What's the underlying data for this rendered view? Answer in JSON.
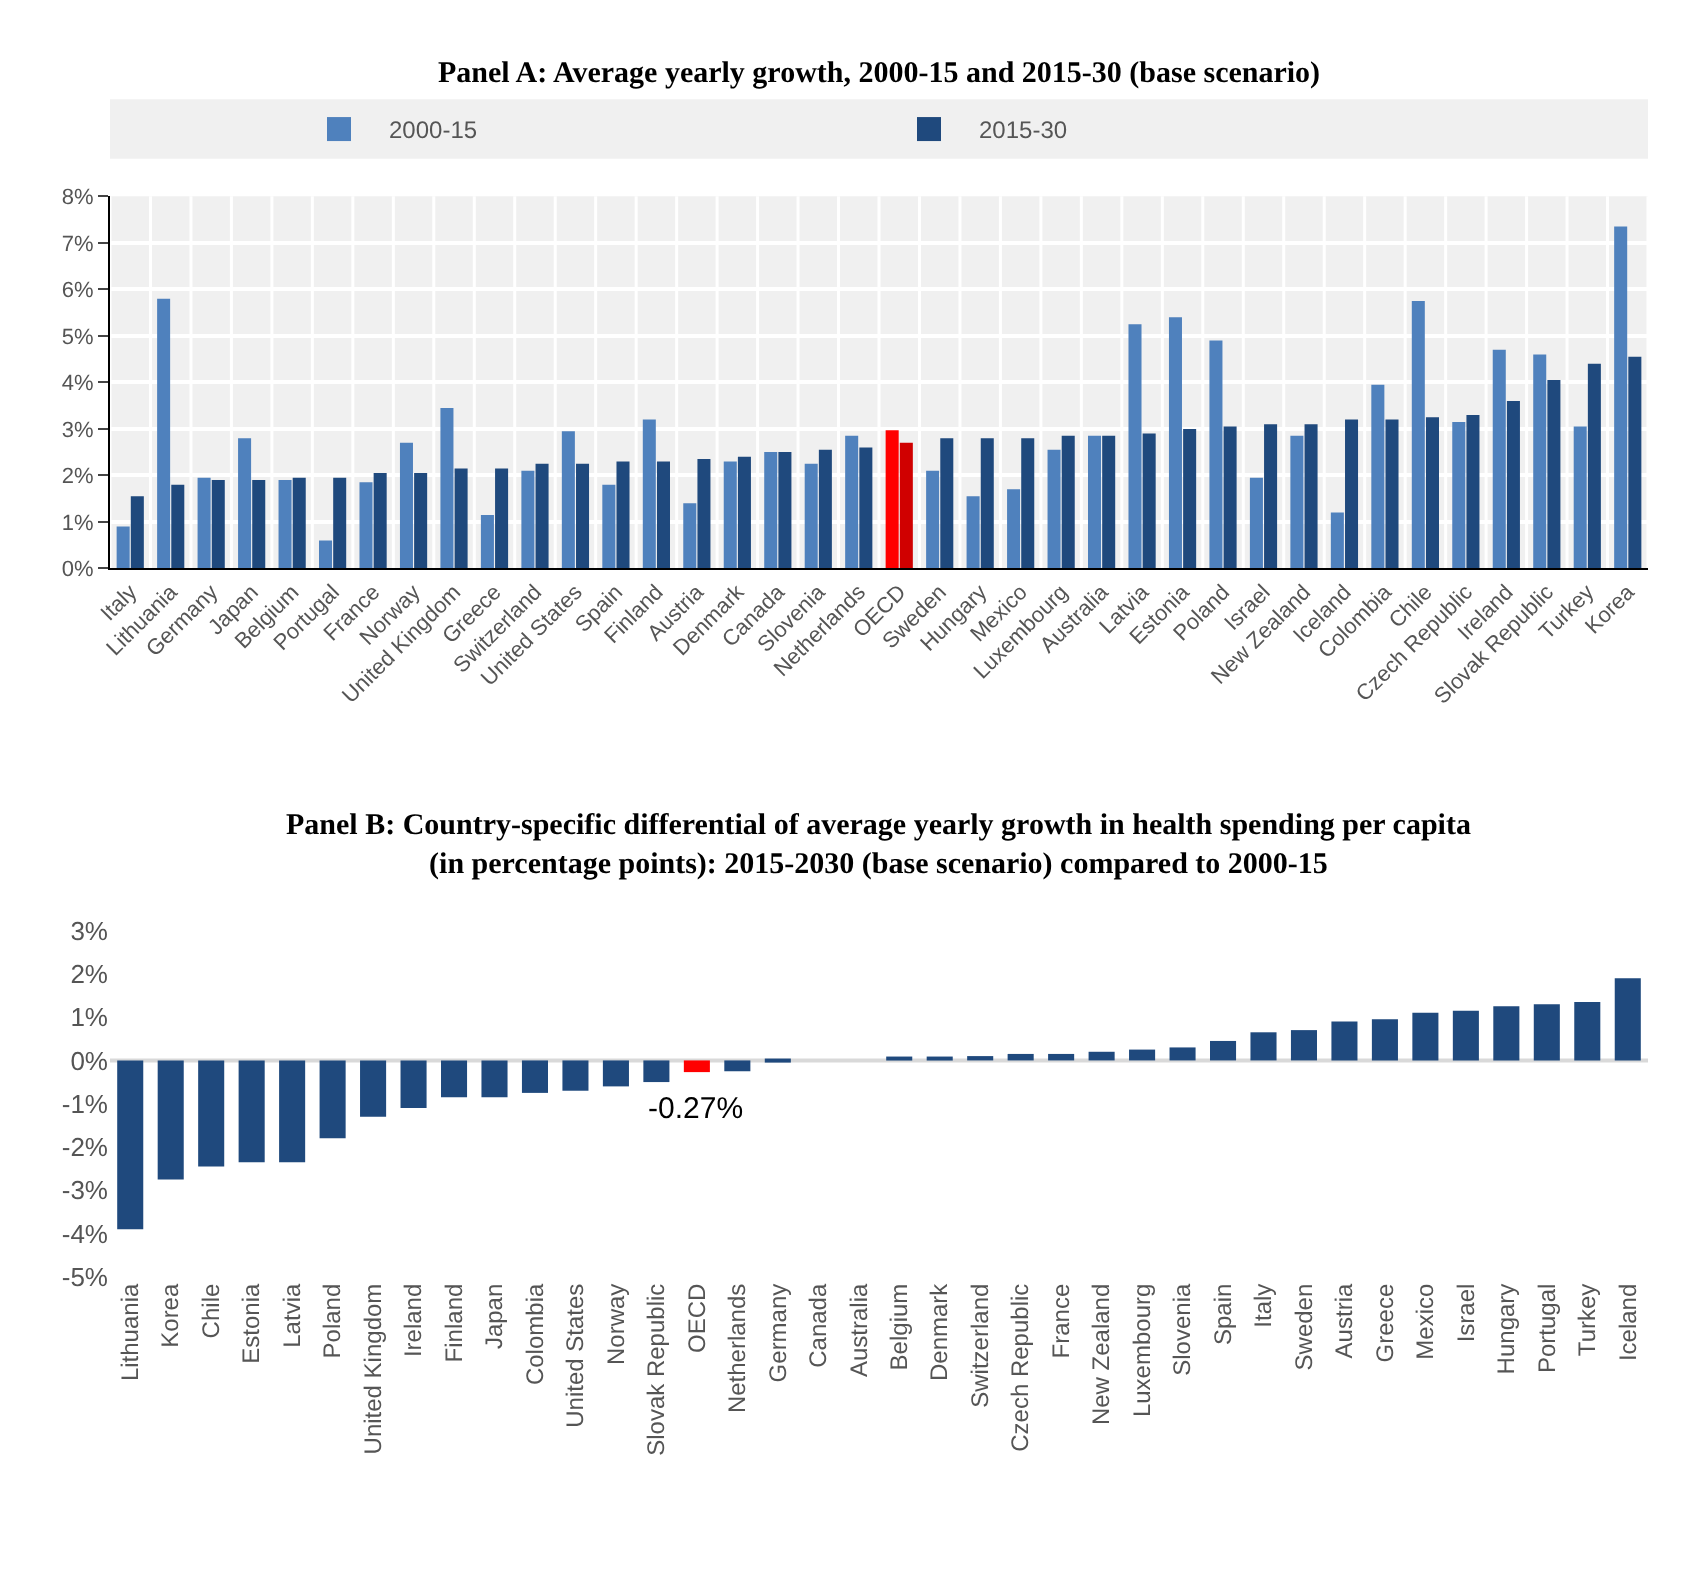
{
  "chart_data": [
    {
      "type": "bar",
      "title": "Panel A: Average yearly growth, 2000-15 and 2015-30 (base scenario)",
      "categories": [
        "Italy",
        "Lithuania",
        "Germany",
        "Japan",
        "Belgium",
        "Portugal",
        "France",
        "Norway",
        "United Kingdom",
        "Greece",
        "Switzerland",
        "United States",
        "Spain",
        "Finland",
        "Austria",
        "Denmark",
        "Canada",
        "Slovenia",
        "Netherlands",
        "OECD",
        "Sweden",
        "Hungary",
        "Mexico",
        "Luxembourg",
        "Australia",
        "Latvia",
        "Estonia",
        "Poland",
        "Israel",
        "New Zealand",
        "Iceland",
        "Colombia",
        "Chile",
        "Czech Republic",
        "Ireland",
        "Slovak Republic",
        "Turkey",
        "Korea"
      ],
      "series": [
        {
          "name": "2000-15",
          "colors": [
            "#4f81bd",
            "#4f81bd",
            "#4f81bd",
            "#4f81bd",
            "#4f81bd",
            "#4f81bd",
            "#4f81bd",
            "#4f81bd",
            "#4f81bd",
            "#4f81bd",
            "#4f81bd",
            "#4f81bd",
            "#4f81bd",
            "#4f81bd",
            "#4f81bd",
            "#4f81bd",
            "#4f81bd",
            "#4f81bd",
            "#4f81bd",
            "#ff0000",
            "#4f81bd",
            "#4f81bd",
            "#4f81bd",
            "#4f81bd",
            "#4f81bd",
            "#4f81bd",
            "#4f81bd",
            "#4f81bd",
            "#4f81bd",
            "#4f81bd",
            "#4f81bd",
            "#4f81bd",
            "#4f81bd",
            "#4f81bd",
            "#4f81bd",
            "#4f81bd",
            "#4f81bd",
            "#4f81bd"
          ],
          "values": [
            0.9,
            5.8,
            1.95,
            2.8,
            1.9,
            0.6,
            1.85,
            2.7,
            3.45,
            1.15,
            2.1,
            2.95,
            1.8,
            3.2,
            1.4,
            2.3,
            2.5,
            2.25,
            2.85,
            2.97,
            2.1,
            1.55,
            1.7,
            2.55,
            2.85,
            5.25,
            5.4,
            4.9,
            1.95,
            2.85,
            1.2,
            3.95,
            5.75,
            3.15,
            4.7,
            4.6,
            3.05,
            7.35
          ]
        },
        {
          "name": "2015-30",
          "colors": [
            "#1f497d",
            "#1f497d",
            "#1f497d",
            "#1f497d",
            "#1f497d",
            "#1f497d",
            "#1f497d",
            "#1f497d",
            "#1f497d",
            "#1f497d",
            "#1f497d",
            "#1f497d",
            "#1f497d",
            "#1f497d",
            "#1f497d",
            "#1f497d",
            "#1f497d",
            "#1f497d",
            "#1f497d",
            "#d00000",
            "#1f497d",
            "#1f497d",
            "#1f497d",
            "#1f497d",
            "#1f497d",
            "#1f497d",
            "#1f497d",
            "#1f497d",
            "#1f497d",
            "#1f497d",
            "#1f497d",
            "#1f497d",
            "#1f497d",
            "#1f497d",
            "#1f497d",
            "#1f497d",
            "#1f497d",
            "#1f497d"
          ],
          "values": [
            1.55,
            1.8,
            1.9,
            1.9,
            1.95,
            1.95,
            2.05,
            2.05,
            2.15,
            2.15,
            2.25,
            2.25,
            2.3,
            2.3,
            2.35,
            2.4,
            2.5,
            2.55,
            2.6,
            2.7,
            2.8,
            2.8,
            2.8,
            2.85,
            2.85,
            2.9,
            3.0,
            3.05,
            3.1,
            3.1,
            3.2,
            3.2,
            3.25,
            3.3,
            3.6,
            4.05,
            4.4,
            4.55
          ]
        }
      ],
      "ylim": [
        0,
        8
      ],
      "yticks": [
        {
          "value": 0,
          "label": "0%"
        },
        {
          "value": 1,
          "label": "1%"
        },
        {
          "value": 2,
          "label": "2%"
        },
        {
          "value": 3,
          "label": "3%"
        },
        {
          "value": 4,
          "label": "4%"
        },
        {
          "value": 5,
          "label": "5%"
        },
        {
          "value": 6,
          "label": "6%"
        },
        {
          "value": 7,
          "label": "7%"
        },
        {
          "value": 8,
          "label": "8%"
        }
      ],
      "grid": true,
      "legend": "top"
    },
    {
      "type": "bar",
      "title": "Panel B: Country-specific differential of average yearly growth in health spending per capita\n(in percentage points): 2015-2030 (base scenario) compared to 2000-15",
      "categories": [
        "Lithuania",
        "Korea",
        "Chile",
        "Estonia",
        "Latvia",
        "Poland",
        "United Kingdom",
        "Ireland",
        "Finland",
        "Japan",
        "Colombia",
        "United States",
        "Norway",
        "Slovak Republic",
        "OECD",
        "Netherlands",
        "Germany",
        "Canada",
        "Australia",
        "Belgium",
        "Denmark",
        "Switzerland",
        "Czech Republic",
        "France",
        "New Zealand",
        "Luxembourg",
        "Slovenia",
        "Spain",
        "Italy",
        "Sweden",
        "Austria",
        "Greece",
        "Mexico",
        "Israel",
        "Hungary",
        "Portugal",
        "Turkey",
        "Iceland"
      ],
      "series": [
        {
          "colors": [
            "#1f497d",
            "#1f497d",
            "#1f497d",
            "#1f497d",
            "#1f497d",
            "#1f497d",
            "#1f497d",
            "#1f497d",
            "#1f497d",
            "#1f497d",
            "#1f497d",
            "#1f497d",
            "#1f497d",
            "#1f497d",
            "#ff0000",
            "#1f497d",
            "#1f497d",
            "#1f497d",
            "#1f497d",
            "#1f497d",
            "#1f497d",
            "#1f497d",
            "#1f497d",
            "#1f497d",
            "#1f497d",
            "#1f497d",
            "#1f497d",
            "#1f497d",
            "#1f497d",
            "#1f497d",
            "#1f497d",
            "#1f497d",
            "#1f497d",
            "#1f497d",
            "#1f497d",
            "#1f497d",
            "#1f497d",
            "#1f497d"
          ],
          "values": [
            -3.9,
            -2.75,
            -2.45,
            -2.35,
            -2.35,
            -1.8,
            -1.3,
            -1.1,
            -0.85,
            -0.85,
            -0.75,
            -0.7,
            -0.6,
            -0.5,
            -0.27,
            -0.25,
            -0.05,
            0,
            0,
            0.05,
            0.05,
            0.1,
            0.15,
            0.15,
            0.2,
            0.25,
            0.3,
            0.45,
            0.65,
            0.7,
            0.9,
            0.95,
            1.1,
            1.15,
            1.25,
            1.3,
            1.35,
            1.9
          ]
        }
      ],
      "ylim": [
        -5,
        3
      ],
      "yticks": [
        {
          "value": -5,
          "label": "-5%"
        },
        {
          "value": -4,
          "label": "-4%"
        },
        {
          "value": -3,
          "label": "-3%"
        },
        {
          "value": -2,
          "label": "-2%"
        },
        {
          "value": -1,
          "label": "-1%"
        },
        {
          "value": 0,
          "label": "0%"
        },
        {
          "value": 1,
          "label": "1%"
        },
        {
          "value": 2,
          "label": "2%"
        },
        {
          "value": 3,
          "label": "3%"
        }
      ],
      "annotations": [
        {
          "text": "-0.27%",
          "x": "OECD",
          "y": -0.27
        }
      ],
      "ref_lines": [
        {
          "axis": "y",
          "value": 0,
          "color": "#d9d9d9"
        }
      ]
    }
  ]
}
